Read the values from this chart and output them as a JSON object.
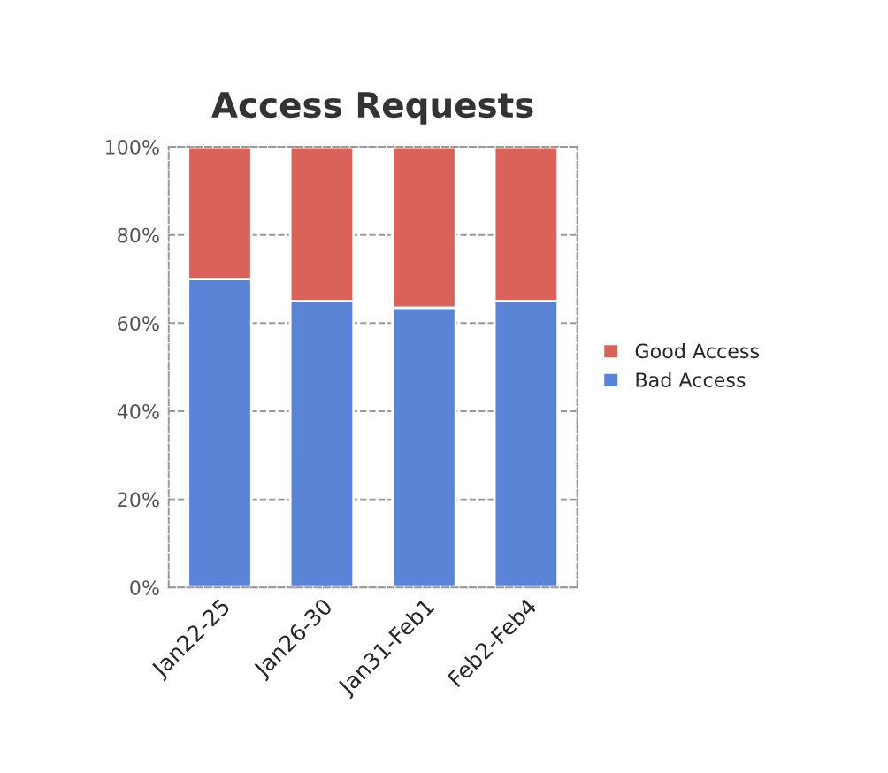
{
  "chart_data": {
    "type": "bar",
    "title": "Access Requests",
    "categories": [
      "Jan22-25",
      "Jan26-30",
      "Jan31-Feb1",
      "Feb2-Feb4"
    ],
    "stacked": true,
    "series": [
      {
        "name": "Bad Access",
        "color": "#5b84d6",
        "values": [
          70,
          65,
          63.5,
          65
        ]
      },
      {
        "name": "Good Access",
        "color": "#d9635b",
        "values": [
          30,
          35,
          36.5,
          35
        ]
      }
    ],
    "ylim": [
      0,
      100
    ],
    "yticks": [
      {
        "value": 0,
        "label": "0%"
      },
      {
        "value": 20,
        "label": "20%"
      },
      {
        "value": 40,
        "label": "40%"
      },
      {
        "value": 60,
        "label": "60%"
      },
      {
        "value": 80,
        "label": "80%"
      },
      {
        "value": 100,
        "label": "100%"
      }
    ],
    "grid": "y",
    "legend": "right"
  }
}
